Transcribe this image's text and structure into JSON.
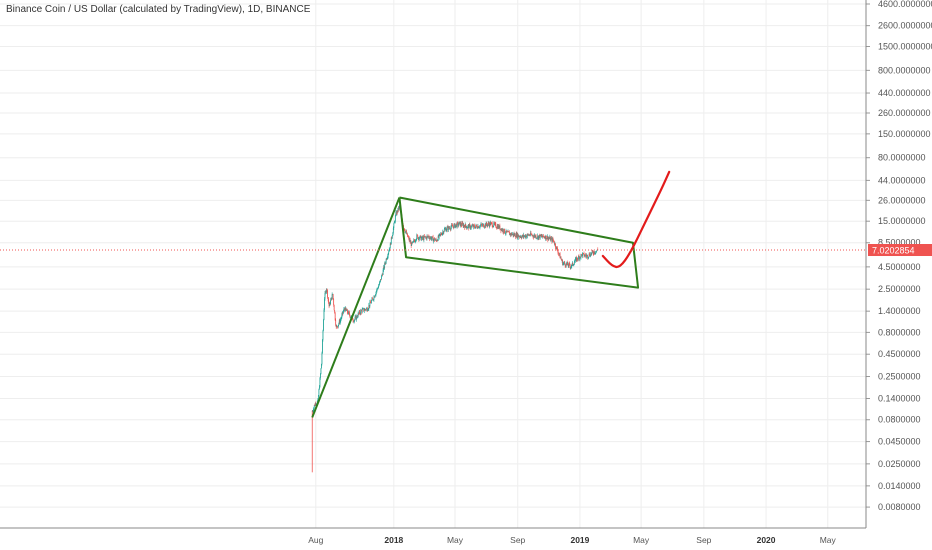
{
  "header": {
    "title": "Binance Coin / US Dollar (calculated by TradingView), 1D, BINANCE"
  },
  "colors": {
    "up": "#26a69a",
    "down": "#ef5350",
    "channel": "#2e7d1b",
    "projection": "#e31b1b",
    "price_line": "#ef5350",
    "grid": "#eeeeee"
  },
  "chart_data": {
    "type": "candlestick",
    "title": "Binance Coin / US Dollar (calculated by TradingView), 1D, BINANCE",
    "y_scale": "log",
    "ylim": [
      0.006,
      4600
    ],
    "y_ticks": [
      {
        "value": 4600,
        "label": "4600.0000000"
      },
      {
        "value": 2600,
        "label": "2600.0000000"
      },
      {
        "value": 1500,
        "label": "1500.0000000"
      },
      {
        "value": 800,
        "label": "800.0000000"
      },
      {
        "value": 440,
        "label": "440.0000000"
      },
      {
        "value": 260,
        "label": "260.0000000"
      },
      {
        "value": 150,
        "label": "150.0000000"
      },
      {
        "value": 80,
        "label": "80.0000000"
      },
      {
        "value": 44,
        "label": "44.0000000"
      },
      {
        "value": 26,
        "label": "26.0000000"
      },
      {
        "value": 15,
        "label": "15.0000000"
      },
      {
        "value": 8.5,
        "label": "8.5000000"
      },
      {
        "value": 4.5,
        "label": "4.5000000"
      },
      {
        "value": 2.5,
        "label": "2.5000000"
      },
      {
        "value": 1.4,
        "label": "1.4000000"
      },
      {
        "value": 0.8,
        "label": "0.8000000"
      },
      {
        "value": 0.45,
        "label": "0.4500000"
      },
      {
        "value": 0.25,
        "label": "0.2500000"
      },
      {
        "value": 0.14,
        "label": "0.1400000"
      },
      {
        "value": 0.08,
        "label": "0.0800000"
      },
      {
        "value": 0.045,
        "label": "0.0450000"
      },
      {
        "value": 0.025,
        "label": "0.0250000"
      },
      {
        "value": 0.014,
        "label": "0.0140000"
      },
      {
        "value": 0.008,
        "label": "0.0080000"
      }
    ],
    "xlim": [
      "2017-07-01",
      "2020-07-15"
    ],
    "x_ticks": [
      {
        "date": "2017-08-01",
        "label": "Aug",
        "bold": false
      },
      {
        "date": "2018-01-01",
        "label": "2018",
        "bold": true
      },
      {
        "date": "2018-05-01",
        "label": "May",
        "bold": false
      },
      {
        "date": "2018-09-01",
        "label": "Sep",
        "bold": false
      },
      {
        "date": "2019-01-01",
        "label": "2019",
        "bold": true
      },
      {
        "date": "2019-05-01",
        "label": "May",
        "bold": false
      },
      {
        "date": "2019-09-01",
        "label": "Sep",
        "bold": false
      },
      {
        "date": "2020-01-01",
        "label": "2020",
        "bold": true
      },
      {
        "date": "2020-05-01",
        "label": "May",
        "bold": false
      }
    ],
    "last_price": 7.0202854,
    "last_price_label": "7.0202854",
    "price_path": [
      [
        "2017-07-25",
        0.1
      ],
      [
        "2017-07-30",
        0.12
      ],
      [
        "2017-08-05",
        0.13
      ],
      [
        "2017-08-12",
        0.35
      ],
      [
        "2017-08-18",
        2.0
      ],
      [
        "2017-08-22",
        2.6
      ],
      [
        "2017-08-27",
        1.6
      ],
      [
        "2017-09-03",
        2.2
      ],
      [
        "2017-09-10",
        0.9
      ],
      [
        "2017-09-18",
        1.1
      ],
      [
        "2017-09-26",
        1.5
      ],
      [
        "2017-10-05",
        1.3
      ],
      [
        "2017-10-15",
        1.1
      ],
      [
        "2017-10-28",
        1.4
      ],
      [
        "2017-11-10",
        1.5
      ],
      [
        "2017-11-22",
        2.0
      ],
      [
        "2017-12-05",
        3.0
      ],
      [
        "2017-12-15",
        5.0
      ],
      [
        "2017-12-25",
        8.0
      ],
      [
        "2018-01-05",
        18.0
      ],
      [
        "2018-01-12",
        22.0
      ],
      [
        "2018-01-20",
        13.0
      ],
      [
        "2018-01-28",
        10.0
      ],
      [
        "2018-02-05",
        8.0
      ],
      [
        "2018-02-15",
        10.0
      ],
      [
        "2018-02-25",
        9.5
      ],
      [
        "2018-03-10",
        10.0
      ],
      [
        "2018-03-25",
        9.0
      ],
      [
        "2018-04-10",
        12.0
      ],
      [
        "2018-04-25",
        13.0
      ],
      [
        "2018-05-10",
        14.0
      ],
      [
        "2018-05-25",
        13.0
      ],
      [
        "2018-06-10",
        13.0
      ],
      [
        "2018-06-25",
        13.5
      ],
      [
        "2018-07-10",
        14.0
      ],
      [
        "2018-07-25",
        13.0
      ],
      [
        "2018-08-10",
        11.0
      ],
      [
        "2018-08-25",
        10.5
      ],
      [
        "2018-09-10",
        10.0
      ],
      [
        "2018-09-25",
        10.5
      ],
      [
        "2018-10-10",
        10.0
      ],
      [
        "2018-10-25",
        10.0
      ],
      [
        "2018-11-10",
        9.0
      ],
      [
        "2018-11-20",
        6.5
      ],
      [
        "2018-11-28",
        5.0
      ],
      [
        "2018-12-05",
        4.8
      ],
      [
        "2018-12-15",
        4.6
      ],
      [
        "2018-12-25",
        5.5
      ],
      [
        "2019-01-05",
        6.2
      ],
      [
        "2019-01-15",
        6.0
      ],
      [
        "2019-01-25",
        6.5
      ],
      [
        "2019-02-05",
        7.0
      ]
    ],
    "annotations": {
      "flagpole": [
        [
          "2017-07-25",
          0.085
        ],
        [
          "2018-01-12",
          28.0
        ]
      ],
      "channel": [
        [
          "2018-01-12",
          28.0
        ],
        [
          "2019-04-15",
          8.5
        ],
        [
          "2019-04-25",
          2.6
        ],
        [
          "2018-01-25",
          5.8
        ],
        [
          "2018-01-12",
          28.0
        ]
      ],
      "projection": [
        [
          "2019-02-15",
          6.0
        ],
        [
          "2019-03-05",
          4.6
        ],
        [
          "2019-03-20",
          4.4
        ],
        [
          "2019-04-10",
          6.5
        ],
        [
          "2019-05-10",
          15.0
        ],
        [
          "2019-06-10",
          35.0
        ],
        [
          "2019-06-25",
          55.0
        ]
      ]
    }
  }
}
